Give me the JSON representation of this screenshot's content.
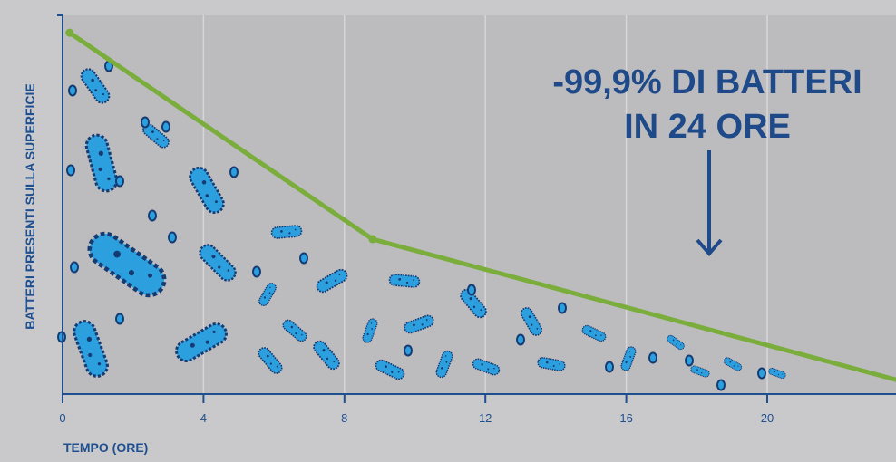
{
  "chart_data": {
    "type": "line",
    "xlabel": "TEMPO (ORE)",
    "ylabel": "BATTERI PRESENTI SULLA SUPERFICIE",
    "x_ticks": [
      0,
      4,
      8,
      12,
      16,
      20
    ],
    "xlim": [
      0,
      24
    ],
    "ylim": [
      0,
      100
    ],
    "grid": "vertical",
    "series": [
      {
        "x": [
          0.2,
          8.8,
          24
        ],
        "y": [
          98,
          42,
          3
        ]
      }
    ],
    "annotation": {
      "lines": [
        "-99,9% DI BATTERI",
        "IN 24 ORE"
      ],
      "arrow": "down"
    }
  },
  "colors": {
    "background": "#c9c9cc",
    "plot_area": "#bcbcbf",
    "line": "#7aad3c",
    "axis": "#1f4f8f",
    "annotation": "#1f4a8a",
    "bacteria_fill": "#2c9fdf",
    "bacteria_outline": "#163a72"
  },
  "icons": {
    "decoration": "bacteria-icon"
  }
}
